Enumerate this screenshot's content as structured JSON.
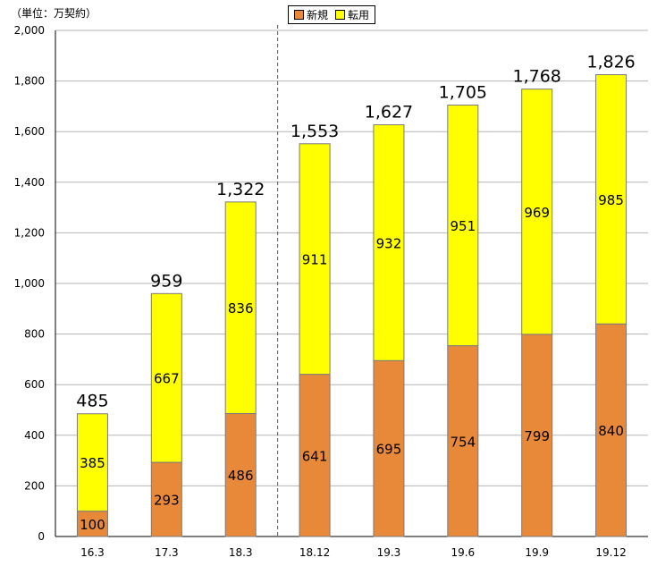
{
  "unit_label": "（単位：万契約）",
  "legend": [
    {
      "label": "新規",
      "color": "#E8893A"
    },
    {
      "label": "転用",
      "color": "#FFFF00"
    }
  ],
  "chart_data": {
    "type": "bar",
    "stacked": true,
    "categories": [
      "16.3",
      "17.3",
      "18.3",
      "18.12",
      "19.3",
      "19.6",
      "19.9",
      "19.12"
    ],
    "series": [
      {
        "name": "新規",
        "values": [
          100,
          293,
          486,
          641,
          695,
          754,
          799,
          840
        ],
        "color": "#E8893A"
      },
      {
        "name": "転用",
        "values": [
          385,
          667,
          836,
          911,
          932,
          951,
          969,
          985
        ],
        "color": "#FFFF00"
      }
    ],
    "totals": [
      "485",
      "959",
      "1,322",
      "1,553",
      "1,627",
      "1,705",
      "1,768",
      "1,826"
    ],
    "ylim": [
      0,
      2000
    ],
    "yticks": [
      "0",
      "200",
      "400",
      "600",
      "800",
      "1,000",
      "1,200",
      "1,400",
      "1,600",
      "1,800",
      "2,000"
    ],
    "grid": true,
    "divider_after_index": 2
  }
}
